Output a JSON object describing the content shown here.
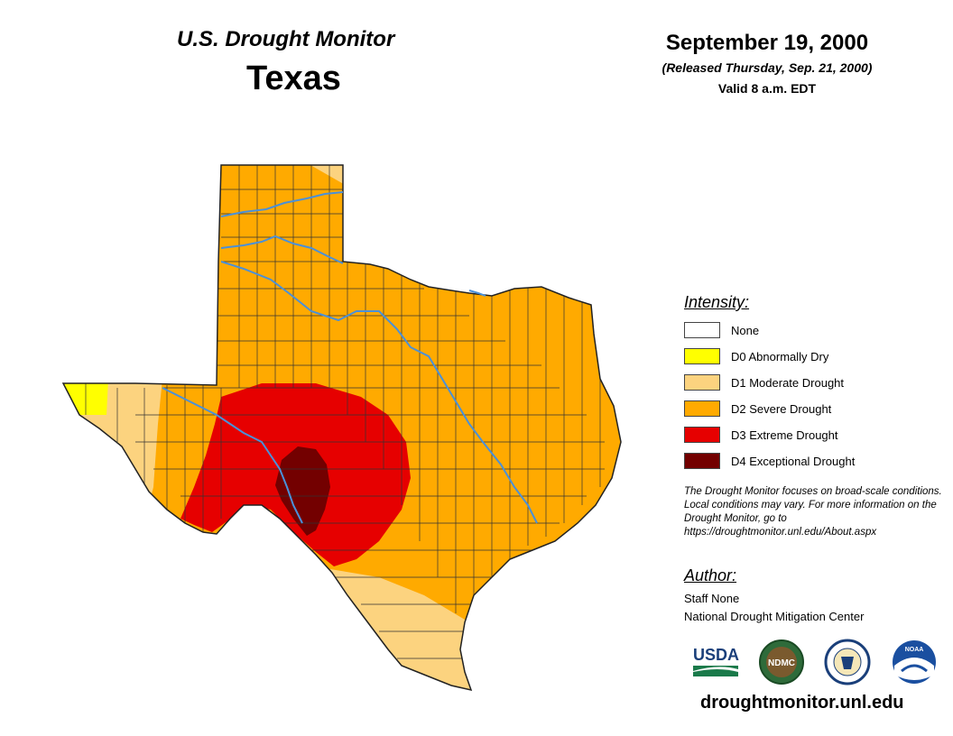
{
  "header": {
    "subtitle": "U.S. Drought Monitor",
    "state": "Texas",
    "date": "September 19, 2000",
    "released": "(Released Thursday, Sep. 21, 2000)",
    "valid": "Valid 8 a.m. EDT"
  },
  "legend": {
    "title": "Intensity:",
    "items": [
      {
        "label": "None",
        "color": "#ffffff"
      },
      {
        "label": "D0 Abnormally Dry",
        "color": "#ffff00"
      },
      {
        "label": "D1 Moderate Drought",
        "color": "#fcd37f"
      },
      {
        "label": "D2 Severe Drought",
        "color": "#ffaa00"
      },
      {
        "label": "D3 Extreme Drought",
        "color": "#e60000"
      },
      {
        "label": "D4 Exceptional Drought",
        "color": "#730000"
      }
    ]
  },
  "disclaimer": "The Drought Monitor focuses on broad-scale conditions. Local conditions may vary. For more information on the Drought Monitor, go to https://droughtmonitor.unl.edu/About.aspx",
  "author": {
    "title": "Author:",
    "name": "Staff None",
    "org": "National Drought Mitigation Center"
  },
  "logos": {
    "usda": "USDA",
    "ndmc": "NDMC",
    "noaa": "NOAA"
  },
  "url": "droughtmonitor.unl.edu",
  "colors": {
    "river": "#4a90d9",
    "county_lines": "#333333"
  }
}
